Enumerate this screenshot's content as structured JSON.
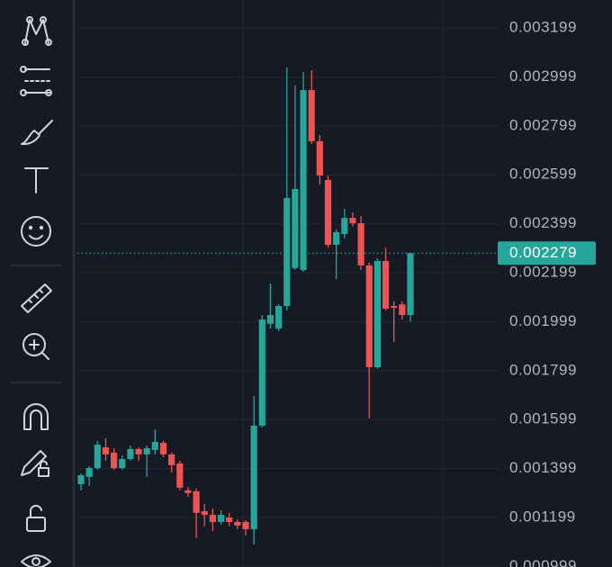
{
  "chart_data": {
    "type": "candlestick",
    "open": [
      0.001335,
      0.001365,
      0.001401,
      0.001486,
      0.001464,
      0.001401,
      0.001438,
      0.001479,
      0.001457,
      0.001475,
      0.001504,
      0.001457,
      0.00142,
      0.00131,
      0.001306,
      0.001225,
      0.00121,
      0.001181,
      0.001199,
      0.001181,
      0.001181,
      0.001151,
      0.001574,
      0.00199,
      0.001971,
      0.002063,
      0.002218,
      0.00221,
      0.002945,
      0.002736,
      0.002578,
      0.002313,
      0.002357,
      0.002423,
      0.002401,
      0.002229,
      0.001813,
      0.002247,
      0.002063,
      0.00207,
      0.002026
    ],
    "high": [
      0.001379,
      0.001409,
      0.001512,
      0.001523,
      0.001482,
      0.001453,
      0.001493,
      0.001486,
      0.001493,
      0.001559,
      0.001512,
      0.001464,
      0.001431,
      0.001324,
      0.001317,
      0.001254,
      0.001236,
      0.001229,
      0.001218,
      0.001192,
      0.001188,
      0.001696,
      0.002026,
      0.002155,
      0.00207,
      0.003037,
      0.002964,
      0.003019,
      0.003026,
      0.002762,
      0.002596,
      0.002376,
      0.00246,
      0.002445,
      0.002431,
      0.00224,
      0.002258,
      0.002302,
      0.002082,
      0.002082,
      0.002279
    ],
    "low": [
      0.00131,
      0.001328,
      0.001394,
      0.001431,
      0.001394,
      0.001394,
      0.001431,
      0.001431,
      0.001365,
      0.001457,
      0.001446,
      0.001383,
      0.00131,
      0.001284,
      0.001115,
      0.001163,
      0.001144,
      0.00117,
      0.001163,
      0.001151,
      0.001126,
      0.001089,
      0.001567,
      0.001971,
      0.00196,
      0.002045,
      0.00221,
      0.002203,
      0.002725,
      0.002559,
      0.002302,
      0.002173,
      0.002339,
      0.002387,
      0.00221,
      0.001604,
      0.001806,
      0.002045,
      0.001916,
      0.002008,
      0.001997
    ],
    "close": [
      0.001372,
      0.001401,
      0.001497,
      0.001457,
      0.001401,
      0.001438,
      0.001479,
      0.001457,
      0.001482,
      0.001508,
      0.001457,
      0.001413,
      0.001321,
      0.001299,
      0.001218,
      0.00121,
      0.001181,
      0.00121,
      0.001181,
      0.001166,
      0.001151,
      0.001574,
      0.002008,
      0.002026,
      0.002063,
      0.002504,
      0.002541,
      0.002945,
      0.002736,
      0.002596,
      0.002313,
      0.002365,
      0.002423,
      0.002401,
      0.002229,
      0.001813,
      0.002247,
      0.002052,
      0.002056,
      0.002026,
      0.002279
    ],
    "up_color": "#26a69a",
    "down_color": "#ef5350",
    "last_price": 0.002279,
    "ylim": [
      0.000997,
      0.003313
    ],
    "yticks": [
      0.003199,
      0.002999,
      0.002799,
      0.002599,
      0.002399,
      0.002199,
      0.001999,
      0.001799,
      0.001599,
      0.001399,
      0.001199,
      0.000999
    ],
    "grid": true
  }
}
